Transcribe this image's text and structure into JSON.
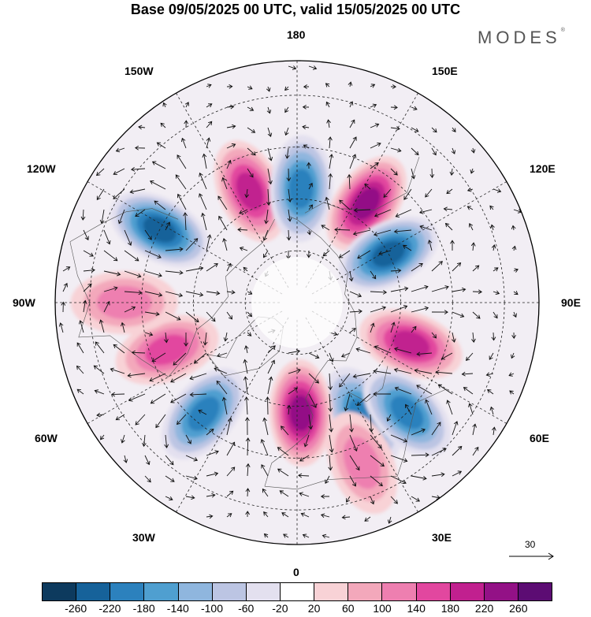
{
  "title": "Base 09/05/2025 00 UTC, valid 15/05/2025 00 UTC",
  "logo": "MODES",
  "longitude_labels": {
    "top": "180",
    "bottom": "0",
    "left": "90W",
    "right": "90E",
    "upper_left_1": "150W",
    "upper_left_2": "120W",
    "lower_left_1": "60W",
    "lower_left_2": "30W",
    "upper_right_1": "150E",
    "upper_right_2": "120E",
    "lower_right_1": "60E",
    "lower_right_2": "30E"
  },
  "reference_vector": "30",
  "colorbar": {
    "colors": [
      "#0d3a5e",
      "#16629a",
      "#2c81bd",
      "#4f9fd0",
      "#8fb6de",
      "#bcc5e3",
      "#e3e0ef",
      "#ffffff",
      "#f8d2d6",
      "#f3a8bb",
      "#ee7fb0",
      "#e2479f",
      "#c1208f",
      "#931186",
      "#5c0c73"
    ],
    "ticks": [
      "-260",
      "-220",
      "-180",
      "-140",
      "-100",
      "-60",
      "-20",
      "20",
      "60",
      "100",
      "140",
      "180",
      "220",
      "260"
    ]
  },
  "anomaly_centers": [
    {
      "sign": "positive",
      "level": 5,
      "lon": -157,
      "lat": 55
    },
    {
      "sign": "negative",
      "level": 5,
      "lon": 178,
      "lat": 57
    },
    {
      "sign": "positive",
      "level": 6,
      "lon": 145,
      "lat": 55
    },
    {
      "sign": "negative",
      "level": 6,
      "lon": 118,
      "lat": 60
    },
    {
      "sign": "positive",
      "level": 5,
      "lon": 70,
      "lat": 55
    },
    {
      "sign": "negative",
      "level": 5,
      "lon": 30,
      "lat": 52
    },
    {
      "sign": "negative",
      "level": 5,
      "lon": 45,
      "lat": 45
    },
    {
      "sign": "positive",
      "level": 6,
      "lon": 2,
      "lat": 58
    },
    {
      "sign": "positive",
      "level": 3,
      "lon": 22,
      "lat": 40
    },
    {
      "sign": "negative",
      "level": 5,
      "lon": -40,
      "lat": 48
    },
    {
      "sign": "positive",
      "level": 4,
      "lon": -70,
      "lat": 50
    },
    {
      "sign": "positive",
      "level": 3,
      "lon": -90,
      "lat": 40
    },
    {
      "sign": "negative",
      "level": 6,
      "lon": -118,
      "lat": 45
    }
  ]
}
